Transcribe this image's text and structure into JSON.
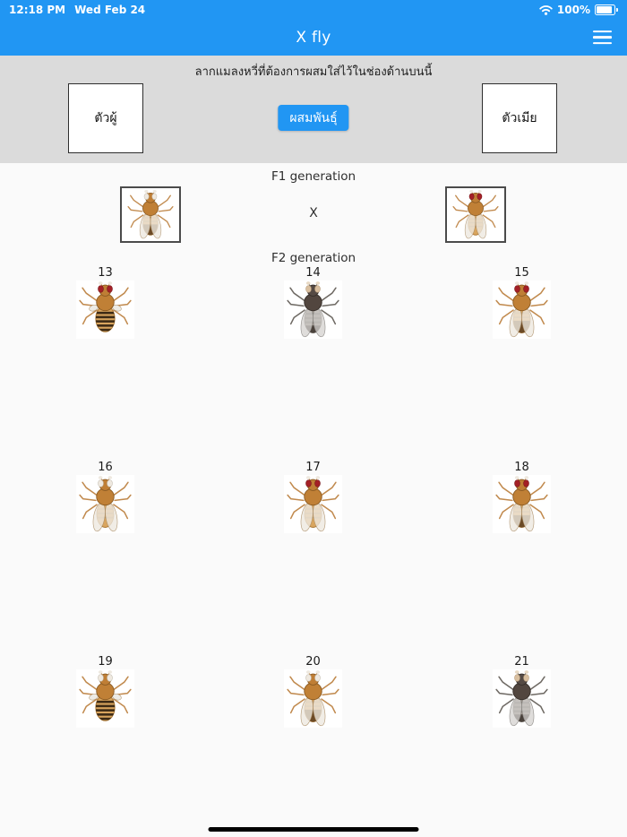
{
  "status_bar": {
    "time": "12:18 PM",
    "date": "Wed Feb 24",
    "battery_percent": "100%"
  },
  "nav": {
    "title": "X fly"
  },
  "panel": {
    "instruction": "ลากแมลงหวี่ที่ต้องการผสมใส่ไว้ในช่องด้านบนนี้",
    "male_label": "ตัวผู้",
    "female_label": "ตัวเมีย",
    "breed_label": "ผสมพันธุ์"
  },
  "f1": {
    "heading": "F1 generation",
    "cross": "X",
    "parents": [
      {
        "eyes": "white",
        "body": "orange",
        "wings": "normal",
        "abdomen": "male"
      },
      {
        "eyes": "red",
        "body": "orange",
        "wings": "normal",
        "abdomen": "female"
      }
    ]
  },
  "f2": {
    "heading": "F2 generation",
    "flies": [
      {
        "label": "13",
        "eyes": "red",
        "body": "orange",
        "wings": "vestigial",
        "abdomen": "striped"
      },
      {
        "label": "14",
        "eyes": "pale",
        "body": "ebony",
        "wings": "normal",
        "abdomen": "ebony"
      },
      {
        "label": "15",
        "eyes": "red",
        "body": "orange",
        "wings": "normal",
        "abdomen": "male"
      },
      {
        "label": "16",
        "eyes": "white",
        "body": "orange",
        "wings": "normal",
        "abdomen": "female"
      },
      {
        "label": "17",
        "eyes": "red",
        "body": "orange",
        "wings": "normal",
        "abdomen": "female"
      },
      {
        "label": "18",
        "eyes": "red",
        "body": "orange",
        "wings": "normal",
        "abdomen": "male"
      },
      {
        "label": "19",
        "eyes": "white",
        "body": "orange",
        "wings": "vestigial",
        "abdomen": "striped"
      },
      {
        "label": "20",
        "eyes": "white",
        "body": "orange",
        "wings": "normal",
        "abdomen": "male"
      },
      {
        "label": "21",
        "eyes": "pale",
        "body": "ebony",
        "wings": "normal",
        "abdomen": "ebony"
      }
    ]
  },
  "colors": {
    "accent": "#2196f3",
    "panel_bg": "#dbdbdb",
    "page_bg": "#fafafa",
    "eye_colors": {
      "red": {
        "fill": "#a42026",
        "stroke": "#77161b"
      },
      "white": {
        "fill": "#efe9e0",
        "stroke": "#c6bfb2"
      },
      "pale": {
        "fill": "#d9bf9f",
        "stroke": "#b99e7c"
      }
    },
    "fly_palettes": {
      "orange": {
        "head": "#bf7e35",
        "head_stroke": "#8a5a22",
        "thorax": "#c08036",
        "abdomen": "#d9a55e",
        "abdomen_stroke": "#a9742f",
        "legs": "#c18a4e",
        "wing": "rgba(238,233,224,0.8)",
        "wing_stroke": "rgba(170,140,100,0.9)",
        "stripe_strong": "#3d2b16",
        "stripe_faint": "#b08c5a",
        "tip": "#6b4a26",
        "tuft": "#eee9e0"
      },
      "ebony": {
        "head": "#554a44",
        "head_stroke": "#352e29",
        "thorax": "#52463f",
        "abdomen": "#9b948c",
        "abdomen_stroke": "#6e6962",
        "legs": "#6f6a64",
        "wing": "rgba(212,210,207,0.75)",
        "wing_stroke": "#8f8c88",
        "stripe_strong": "#575049",
        "stripe_faint": "#756f68",
        "tip": "#4a423c",
        "tuft": "#e8d9c4"
      }
    }
  }
}
